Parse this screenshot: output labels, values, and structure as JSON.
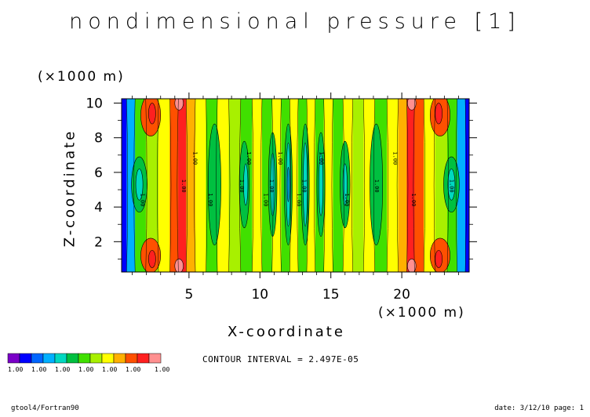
{
  "header": {
    "title": "nondimensional pressure [1]",
    "x_unit": "(×1000 m)",
    "contour_interval": "CONTOUR INTERVAL = 2.497E-05"
  },
  "footer": {
    "left": "gtool4/Fortran90",
    "right": "date: 3/12/10 page: 1"
  },
  "legend": {
    "colors": [
      "#7a00c8",
      "#0000ff",
      "#0066ff",
      "#00b0ff",
      "#00d8c0",
      "#00c040",
      "#40e000",
      "#a8f000",
      "#ffff00",
      "#ffb000",
      "#ff5000",
      "#ff2020",
      "#ff9090"
    ],
    "labels": [
      "1.00",
      "1.00",
      "1.00",
      "1.00",
      "1.00",
      "1.00",
      "1.00"
    ]
  },
  "chart_data": {
    "type": "heatmap",
    "title": "nondimensional pressure [1]",
    "xlabel": "X-coordinate",
    "ylabel": "Z-coordinate",
    "x_unit": "(×1000 m)",
    "z_unit": "(×1000 m)",
    "xlim": [
      0.25,
      24.75
    ],
    "ylim": [
      0.25,
      10.25
    ],
    "x_ticks": [
      5,
      10,
      15,
      20
    ],
    "y_ticks": [
      2,
      4,
      6,
      8,
      10
    ],
    "contour_label": "1.00",
    "columns": [
      {
        "x": 0.3,
        "color": "#0000ff"
      },
      {
        "x": 0.9,
        "color": "#00b0ff"
      },
      {
        "x": 1.5,
        "color": "#40e000"
      },
      {
        "x": 2.4,
        "color": "#a8f000"
      },
      {
        "x": 3.3,
        "color": "#ffff00"
      },
      {
        "x": 4.0,
        "color": "#ff5000"
      },
      {
        "x": 4.5,
        "color": "#ff2020"
      },
      {
        "x": 5.1,
        "color": "#ffb000"
      },
      {
        "x": 5.8,
        "color": "#ffff00"
      },
      {
        "x": 6.6,
        "color": "#40e000"
      },
      {
        "x": 7.4,
        "color": "#ffff00"
      },
      {
        "x": 8.2,
        "color": "#a8f000"
      },
      {
        "x": 9.1,
        "color": "#40e000"
      },
      {
        "x": 9.8,
        "color": "#ffff00"
      },
      {
        "x": 10.5,
        "color": "#40e000"
      },
      {
        "x": 11.2,
        "color": "#ffff00"
      },
      {
        "x": 11.8,
        "color": "#40e000"
      },
      {
        "x": 12.4,
        "color": "#ffff00"
      },
      {
        "x": 13.0,
        "color": "#40e000"
      },
      {
        "x": 13.6,
        "color": "#ffff00"
      },
      {
        "x": 14.2,
        "color": "#40e000"
      },
      {
        "x": 14.8,
        "color": "#ffff00"
      },
      {
        "x": 15.5,
        "color": "#40e000"
      },
      {
        "x": 16.2,
        "color": "#ffff00"
      },
      {
        "x": 16.9,
        "color": "#a8f000"
      },
      {
        "x": 17.7,
        "color": "#ffff00"
      },
      {
        "x": 18.5,
        "color": "#40e000"
      },
      {
        "x": 19.4,
        "color": "#ffff00"
      },
      {
        "x": 20.1,
        "color": "#ffb000"
      },
      {
        "x": 20.6,
        "color": "#ff2020"
      },
      {
        "x": 21.2,
        "color": "#ff5000"
      },
      {
        "x": 21.9,
        "color": "#ffff00"
      },
      {
        "x": 22.8,
        "color": "#a8f000"
      },
      {
        "x": 23.6,
        "color": "#40e000"
      },
      {
        "x": 24.2,
        "color": "#00b0ff"
      },
      {
        "x": 24.75,
        "color": "#0000ff"
      }
    ],
    "blobs": [
      {
        "x": 1.5,
        "z": 5.3,
        "rx": 0.55,
        "rz": 1.6,
        "color": "#00c040"
      },
      {
        "x": 1.5,
        "z": 5.3,
        "rx": 0.25,
        "rz": 0.9,
        "color": "#00d8c0"
      },
      {
        "x": 2.3,
        "z": 9.3,
        "rx": 0.7,
        "rz": 1.2,
        "color": "#ff5000"
      },
      {
        "x": 2.3,
        "z": 1.2,
        "rx": 0.7,
        "rz": 1.0,
        "color": "#ff5000"
      },
      {
        "x": 2.4,
        "z": 9.4,
        "rx": 0.25,
        "rz": 0.6,
        "color": "#ff2020"
      },
      {
        "x": 2.4,
        "z": 1.0,
        "rx": 0.25,
        "rz": 0.5,
        "color": "#ff2020"
      },
      {
        "x": 4.3,
        "z": 10.0,
        "rx": 0.3,
        "rz": 0.4,
        "color": "#ff9090"
      },
      {
        "x": 4.3,
        "z": 0.6,
        "rx": 0.3,
        "rz": 0.4,
        "color": "#ff9090"
      },
      {
        "x": 6.8,
        "z": 5.3,
        "rx": 0.45,
        "rz": 3.5,
        "color": "#00c040"
      },
      {
        "x": 8.9,
        "z": 5.3,
        "rx": 0.35,
        "rz": 2.5,
        "color": "#00c040"
      },
      {
        "x": 9.0,
        "z": 5.3,
        "rx": 0.15,
        "rz": 1.2,
        "color": "#00d8c0"
      },
      {
        "x": 10.9,
        "z": 5.3,
        "rx": 0.3,
        "rz": 3.0,
        "color": "#00c040"
      },
      {
        "x": 10.9,
        "z": 5.3,
        "rx": 0.15,
        "rz": 1.8,
        "color": "#00d8c0"
      },
      {
        "x": 12.0,
        "z": 5.3,
        "rx": 0.28,
        "rz": 3.5,
        "color": "#00c040"
      },
      {
        "x": 12.0,
        "z": 5.3,
        "rx": 0.15,
        "rz": 2.4,
        "color": "#00d8c0"
      },
      {
        "x": 12.0,
        "z": 5.3,
        "rx": 0.07,
        "rz": 1.0,
        "color": "#00b0ff"
      },
      {
        "x": 13.2,
        "z": 5.3,
        "rx": 0.28,
        "rz": 3.5,
        "color": "#00c040"
      },
      {
        "x": 13.2,
        "z": 5.3,
        "rx": 0.15,
        "rz": 2.4,
        "color": "#00d8c0"
      },
      {
        "x": 14.3,
        "z": 5.3,
        "rx": 0.28,
        "rz": 3.0,
        "color": "#00c040"
      },
      {
        "x": 14.3,
        "z": 5.3,
        "rx": 0.15,
        "rz": 1.8,
        "color": "#00d8c0"
      },
      {
        "x": 16.0,
        "z": 5.3,
        "rx": 0.35,
        "rz": 2.5,
        "color": "#00c040"
      },
      {
        "x": 16.0,
        "z": 5.3,
        "rx": 0.15,
        "rz": 1.2,
        "color": "#00d8c0"
      },
      {
        "x": 18.2,
        "z": 5.3,
        "rx": 0.45,
        "rz": 3.5,
        "color": "#00c040"
      },
      {
        "x": 23.5,
        "z": 5.3,
        "rx": 0.55,
        "rz": 1.6,
        "color": "#00c040"
      },
      {
        "x": 23.5,
        "z": 5.3,
        "rx": 0.25,
        "rz": 0.9,
        "color": "#00d8c0"
      },
      {
        "x": 22.7,
        "z": 9.3,
        "rx": 0.7,
        "rz": 1.2,
        "color": "#ff5000"
      },
      {
        "x": 22.7,
        "z": 1.2,
        "rx": 0.7,
        "rz": 1.0,
        "color": "#ff5000"
      },
      {
        "x": 22.6,
        "z": 9.4,
        "rx": 0.25,
        "rz": 0.6,
        "color": "#ff2020"
      },
      {
        "x": 22.6,
        "z": 1.0,
        "rx": 0.25,
        "rz": 0.5,
        "color": "#ff2020"
      },
      {
        "x": 20.7,
        "z": 10.0,
        "rx": 0.3,
        "rz": 0.4,
        "color": "#ff9090"
      },
      {
        "x": 20.7,
        "z": 0.6,
        "rx": 0.3,
        "rz": 0.4,
        "color": "#ff9090"
      }
    ]
  }
}
